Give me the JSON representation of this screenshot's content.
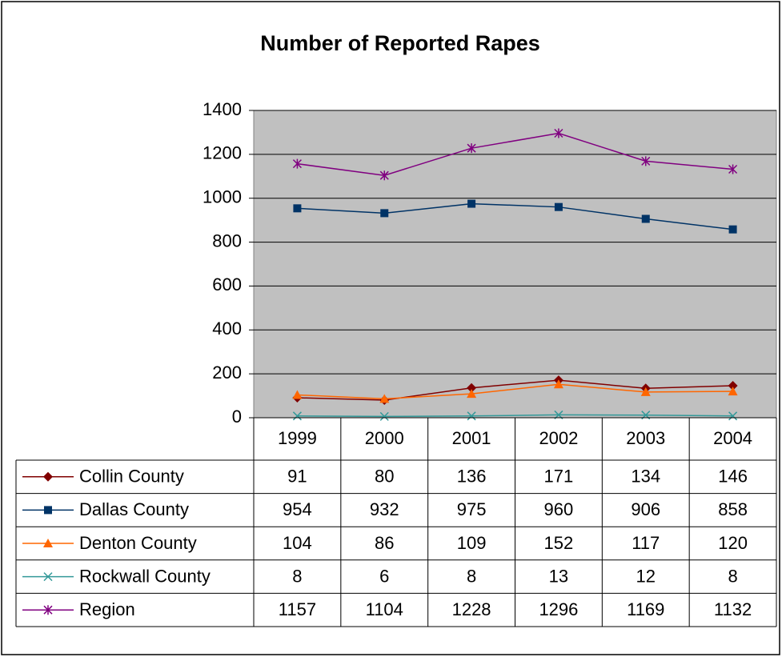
{
  "chart_data": {
    "type": "line",
    "title": "Number of Reported Rapes",
    "categories": [
      "1999",
      "2000",
      "2001",
      "2002",
      "2003",
      "2004"
    ],
    "series": [
      {
        "name": "Collin County",
        "color": "#800000",
        "marker": "diamond",
        "values": [
          91,
          80,
          136,
          171,
          134,
          146
        ]
      },
      {
        "name": "Dallas County",
        "color": "#003366",
        "marker": "square",
        "values": [
          954,
          932,
          975,
          960,
          906,
          858
        ]
      },
      {
        "name": "Denton County",
        "color": "#ff6600",
        "marker": "triangle",
        "values": [
          104,
          86,
          109,
          152,
          117,
          120
        ]
      },
      {
        "name": "Rockwall County",
        "color": "#339999",
        "marker": "x",
        "values": [
          8,
          6,
          8,
          13,
          12,
          8
        ]
      },
      {
        "name": "Region",
        "color": "#800080",
        "marker": "star",
        "values": [
          1157,
          1104,
          1228,
          1296,
          1169,
          1132
        ]
      }
    ],
    "ylim": [
      0,
      1400
    ],
    "yticks": [
      0,
      200,
      400,
      600,
      800,
      1000,
      1200,
      1400
    ],
    "grid": true,
    "data_table": true
  }
}
